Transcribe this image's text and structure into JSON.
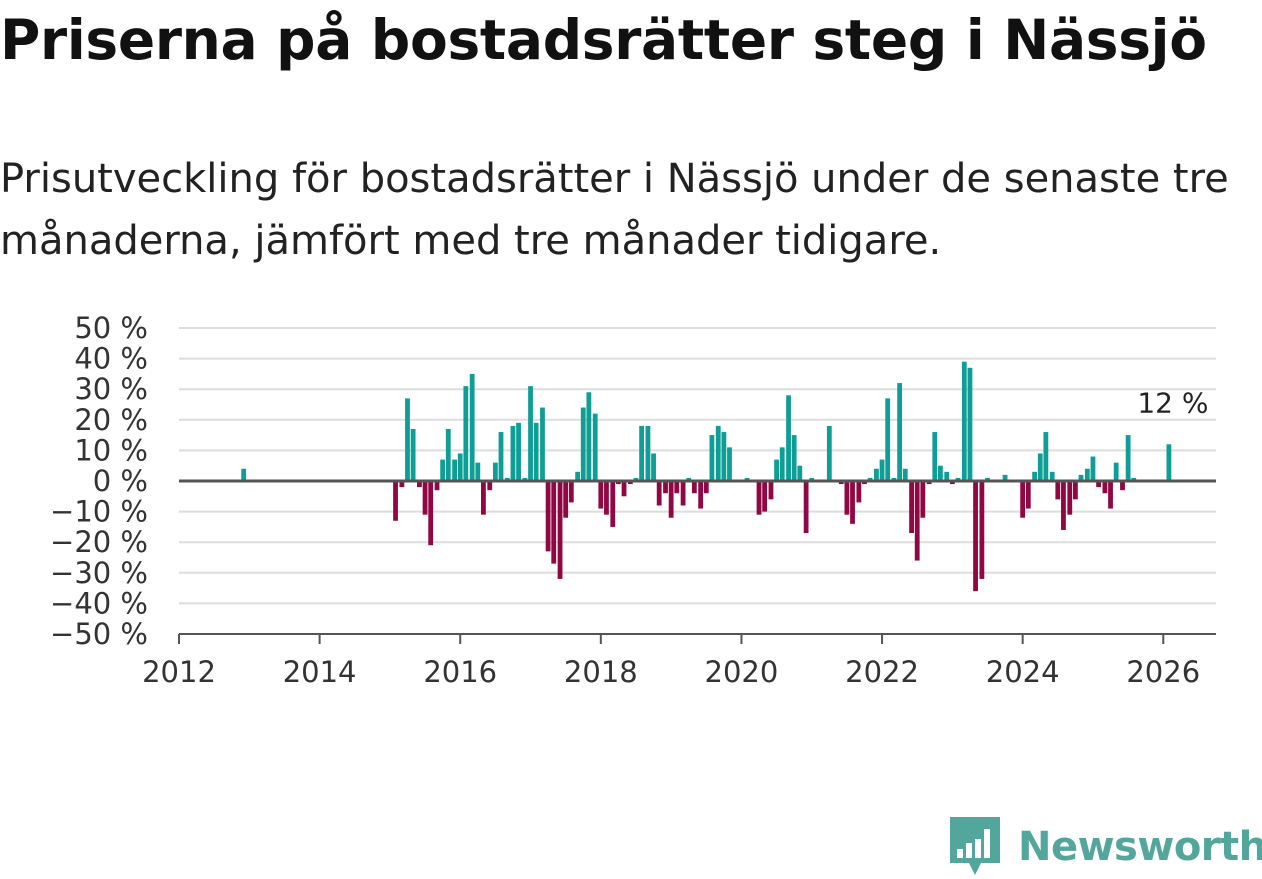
{
  "header": {
    "title": "Priserna på bostadsrätter steg i Nässjö",
    "subtitle": "Prisutveckling för bostadsrätter i Nässjö under de senaste tre månaderna, jämfört med tre månader tidigare."
  },
  "logo": {
    "text": "Newsworthy",
    "color": "#52a69b"
  },
  "colors": {
    "positive": "#0f9e96",
    "negative": "#8f0743",
    "grid": "#dddddd",
    "zero_line": "#555555",
    "axis_text": "#333333"
  },
  "chart_data": {
    "type": "bar",
    "title": "Priserna på bostadsrätter steg i Nässjö",
    "xlabel": "",
    "ylabel": "",
    "unit": "%",
    "ylim": [
      -50,
      50
    ],
    "yticks": [
      50,
      40,
      30,
      20,
      10,
      0,
      -10,
      -20,
      -30,
      -40,
      -50
    ],
    "ytick_labels": [
      "50 %",
      "40 %",
      "30 %",
      "20 %",
      "10 %",
      "0 %",
      "−10 %",
      "−20 %",
      "−30 %",
      "−40 %",
      "−50 %"
    ],
    "xlim": [
      2012,
      2026.75
    ],
    "xticks": [
      2012,
      2014,
      2016,
      2018,
      2020,
      2022,
      2024,
      2026
    ],
    "annotation": {
      "text": "12 %",
      "x": 2026.08,
      "y": 12
    },
    "x": [
      2012.92,
      2015.08,
      2015.17,
      2015.25,
      2015.33,
      2015.42,
      2015.5,
      2015.58,
      2015.67,
      2015.75,
      2015.83,
      2015.92,
      2016.0,
      2016.08,
      2016.17,
      2016.25,
      2016.33,
      2016.42,
      2016.5,
      2016.58,
      2016.67,
      2016.75,
      2016.83,
      2016.92,
      2017.0,
      2017.08,
      2017.17,
      2017.25,
      2017.33,
      2017.42,
      2017.5,
      2017.58,
      2017.67,
      2017.75,
      2017.83,
      2017.92,
      2018.0,
      2018.08,
      2018.17,
      2018.25,
      2018.33,
      2018.42,
      2018.5,
      2018.58,
      2018.67,
      2018.75,
      2018.83,
      2018.92,
      2019.0,
      2019.08,
      2019.17,
      2019.25,
      2019.33,
      2019.42,
      2019.5,
      2019.58,
      2019.67,
      2019.75,
      2019.83,
      2020.08,
      2020.25,
      2020.33,
      2020.42,
      2020.5,
      2020.58,
      2020.67,
      2020.75,
      2020.83,
      2020.92,
      2021.0,
      2021.25,
      2021.42,
      2021.5,
      2021.58,
      2021.67,
      2021.75,
      2021.83,
      2021.92,
      2022.0,
      2022.08,
      2022.17,
      2022.25,
      2022.33,
      2022.42,
      2022.5,
      2022.58,
      2022.67,
      2022.75,
      2022.83,
      2022.92,
      2023.0,
      2023.08,
      2023.17,
      2023.25,
      2023.33,
      2023.42,
      2023.5,
      2023.75,
      2024.0,
      2024.08,
      2024.17,
      2024.25,
      2024.33,
      2024.42,
      2024.5,
      2024.58,
      2024.67,
      2024.75,
      2024.83,
      2024.92,
      2025.0,
      2025.08,
      2025.17,
      2025.25,
      2025.33,
      2025.42,
      2025.5,
      2025.58,
      2026.08
    ],
    "values": [
      4,
      -13,
      -2,
      27,
      17,
      -2,
      -11,
      -21,
      -3,
      7,
      17,
      7,
      9,
      31,
      35,
      6,
      -11,
      -3,
      6,
      16,
      1,
      18,
      19,
      1,
      31,
      19,
      24,
      -23,
      -27,
      -32,
      -12,
      -7,
      3,
      24,
      29,
      22,
      -9,
      -11,
      -15,
      -1,
      -5,
      -1,
      1,
      18,
      18,
      9,
      -8,
      -4,
      -12,
      -4,
      -8,
      1,
      -4,
      -9,
      -4,
      15,
      18,
      16,
      11,
      1,
      -11,
      -10,
      -6,
      7,
      11,
      28,
      15,
      5,
      -17,
      1,
      18,
      -1,
      -11,
      -14,
      -7,
      -1,
      1,
      4,
      7,
      27,
      1,
      32,
      4,
      -17,
      -26,
      -12,
      -1,
      16,
      5,
      3,
      -1,
      1,
      39,
      37,
      -36,
      -32,
      1,
      2,
      -12,
      -9,
      3,
      9,
      16,
      3,
      -6,
      -16,
      -11,
      -6,
      2,
      4,
      8,
      -2,
      -4,
      -9,
      6,
      -3,
      15,
      1,
      12
    ]
  }
}
